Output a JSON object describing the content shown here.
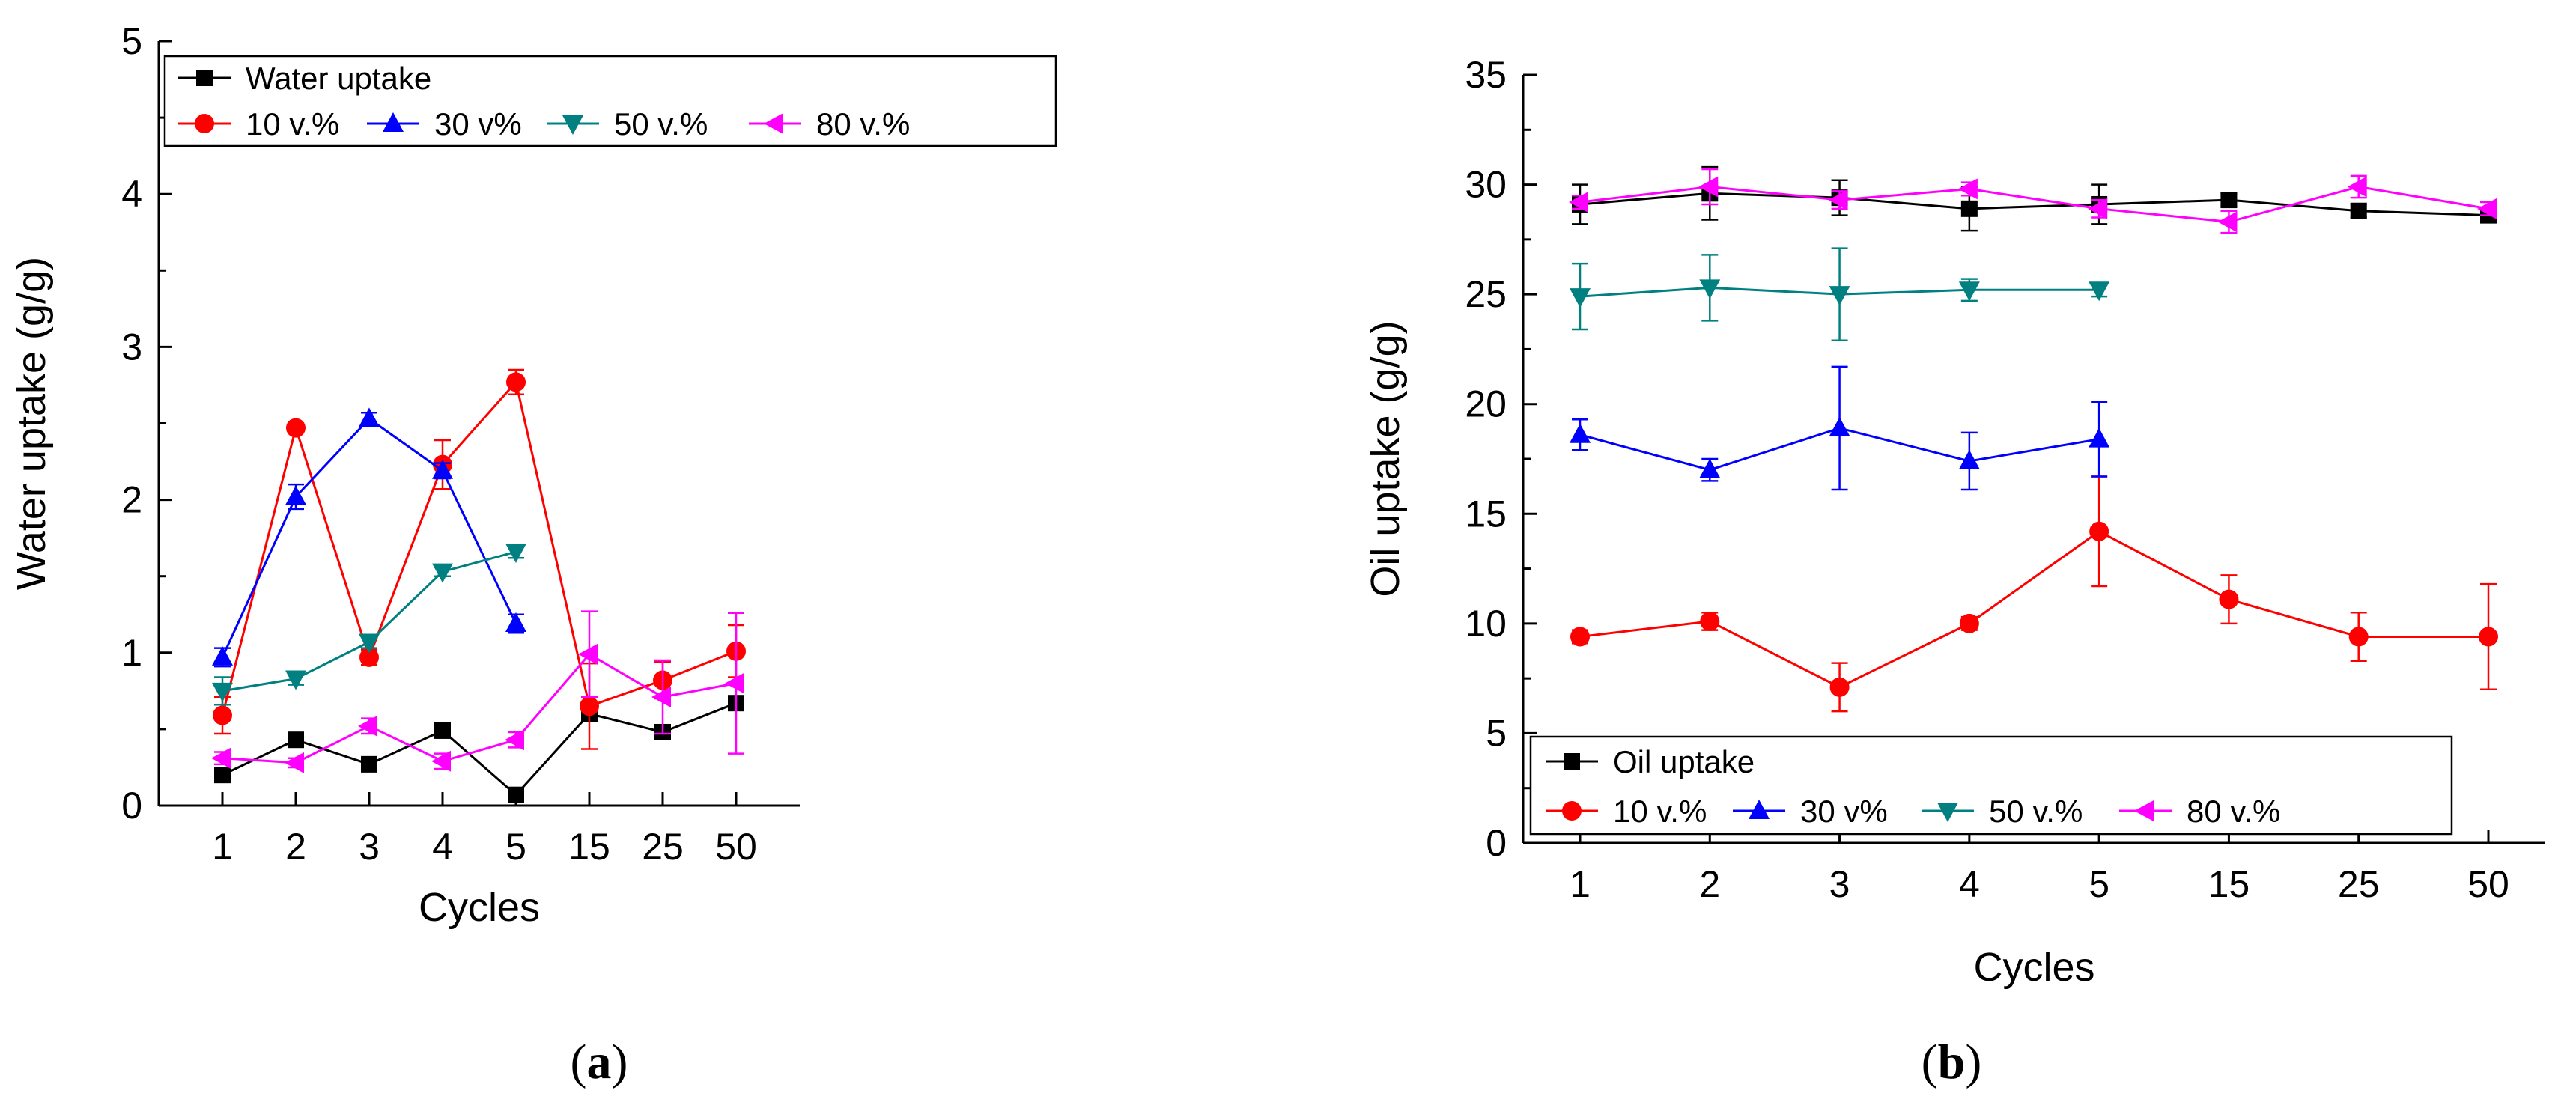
{
  "panels": [
    {
      "label_open": "(",
      "label_letter": "a",
      "label_close": ")"
    },
    {
      "label_open": "(",
      "label_letter": "b",
      "label_close": ")"
    }
  ],
  "chart_data": [
    {
      "type": "line",
      "xlabel": "Cycles",
      "ylabel": "Water uptake (g/g)",
      "categories": [
        "1",
        "2",
        "3",
        "4",
        "5",
        "15",
        "25",
        "50"
      ],
      "ylim": [
        0,
        5
      ],
      "yticks": [
        "0",
        "1",
        "2",
        "3",
        "4",
        "5"
      ],
      "grid": false,
      "legend_position": "top-left",
      "series": [
        {
          "name": "Water uptake",
          "color": "#000000",
          "marker": "square",
          "values": [
            0.2,
            0.43,
            0.27,
            0.49,
            0.07,
            0.6,
            0.48,
            0.67
          ],
          "errors": [
            0.04,
            0.04,
            0.03,
            0.03,
            0.03,
            0.05,
            0.03,
            0.04
          ]
        },
        {
          "name": "10 v.%",
          "color": "#ff0000",
          "marker": "circle",
          "values": [
            0.59,
            2.47,
            0.97,
            2.23,
            2.77,
            0.65,
            0.82,
            1.01
          ],
          "errors": [
            0.12,
            0.03,
            0.05,
            0.16,
            0.08,
            0.28,
            0.12,
            0.17
          ]
        },
        {
          "name": "30 v%",
          "color": "#0000ff",
          "marker": "triangle-up",
          "values": [
            0.97,
            2.02,
            2.53,
            2.19,
            1.19,
            null,
            null,
            null
          ],
          "errors": [
            0.06,
            0.08,
            0.04,
            0.05,
            0.06,
            null,
            null,
            null
          ]
        },
        {
          "name": "50 v.%",
          "color": "#008080",
          "marker": "triangle-down",
          "values": [
            0.75,
            0.83,
            1.07,
            1.53,
            1.66,
            null,
            null,
            null
          ],
          "errors": [
            0.09,
            0.04,
            0.04,
            0.03,
            0.04,
            null,
            null,
            null
          ]
        },
        {
          "name": "80 v.%",
          "color": "#ff00ff",
          "marker": "triangle-left",
          "values": [
            0.31,
            0.28,
            0.52,
            0.29,
            0.43,
            0.99,
            0.71,
            0.8
          ],
          "errors": [
            0.04,
            0.03,
            0.05,
            0.05,
            0.05,
            0.28,
            0.24,
            0.46
          ]
        }
      ]
    },
    {
      "type": "line",
      "xlabel": "Cycles",
      "ylabel": "Oil uptake (g/g)",
      "categories": [
        "1",
        "2",
        "3",
        "4",
        "5",
        "15",
        "25",
        "50"
      ],
      "ylim": [
        0,
        35
      ],
      "yticks": [
        "0",
        "5",
        "10",
        "15",
        "20",
        "25",
        "30",
        "35"
      ],
      "grid": false,
      "legend_position": "bottom-left",
      "series": [
        {
          "name": "Oil uptake",
          "color": "#000000",
          "marker": "square",
          "values": [
            29.1,
            29.6,
            29.4,
            28.9,
            29.1,
            29.3,
            28.8,
            28.6
          ],
          "errors": [
            0.9,
            1.2,
            0.8,
            1.0,
            0.9,
            0.3,
            0.3,
            0.3
          ]
        },
        {
          "name": "10 v.%",
          "color": "#ff0000",
          "marker": "circle",
          "values": [
            9.4,
            10.1,
            7.1,
            10.0,
            14.2,
            11.1,
            9.4,
            9.4
          ],
          "errors": [
            0.3,
            0.4,
            1.1,
            0.3,
            2.5,
            1.1,
            1.1,
            2.4
          ]
        },
        {
          "name": "30 v%",
          "color": "#0000ff",
          "marker": "triangle-up",
          "values": [
            18.6,
            17.0,
            18.9,
            17.4,
            18.4,
            null,
            null,
            null
          ],
          "errors": [
            0.7,
            0.5,
            2.8,
            1.3,
            1.7,
            null,
            null,
            null
          ]
        },
        {
          "name": "50 v.%",
          "color": "#008080",
          "marker": "triangle-down",
          "values": [
            24.9,
            25.3,
            25.0,
            25.2,
            25.2,
            null,
            null,
            null
          ],
          "errors": [
            1.5,
            1.5,
            2.1,
            0.5,
            0.3,
            null,
            null,
            null
          ]
        },
        {
          "name": "80 v.%",
          "color": "#ff00ff",
          "marker": "triangle-left",
          "values": [
            29.2,
            29.9,
            29.3,
            29.8,
            28.9,
            28.3,
            29.9,
            28.9
          ],
          "errors": [
            0.3,
            0.8,
            0.4,
            0.3,
            0.4,
            0.5,
            0.5,
            0.3
          ]
        }
      ]
    }
  ]
}
